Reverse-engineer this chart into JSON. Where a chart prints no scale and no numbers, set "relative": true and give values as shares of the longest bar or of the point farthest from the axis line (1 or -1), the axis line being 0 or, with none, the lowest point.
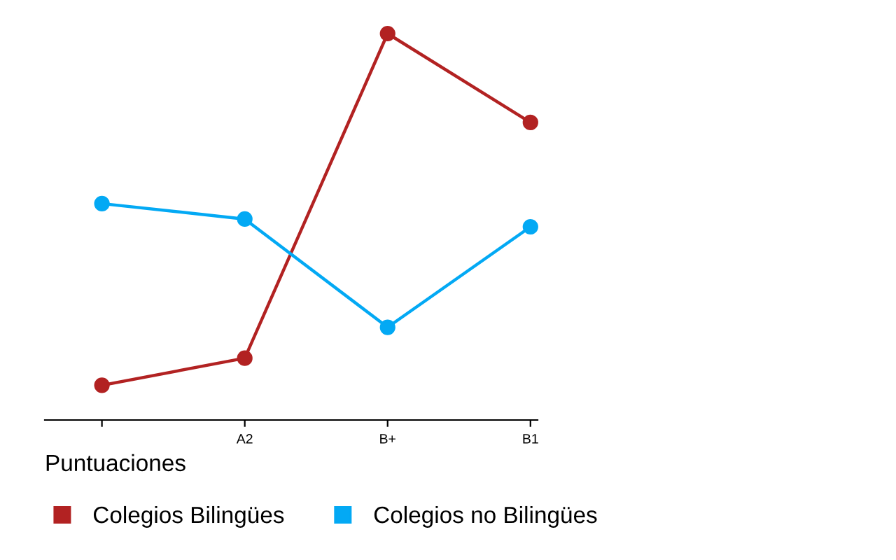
{
  "chart_data": {
    "type": "line",
    "relative": true,
    "xlabel": "Puntuaciones",
    "categories": [
      null,
      "A2",
      "B+",
      "B1"
    ],
    "series": [
      {
        "name": "Colegios Bilingües",
        "color": "#b22222",
        "values": [
          0.09,
          0.16,
          1.0,
          0.77
        ]
      },
      {
        "name": "Colegios no Bilingües",
        "color": "#03a9f4",
        "values": [
          0.56,
          0.52,
          0.24,
          0.5
        ]
      }
    ],
    "marker": "circle",
    "grid": false,
    "legend": "bottom"
  }
}
